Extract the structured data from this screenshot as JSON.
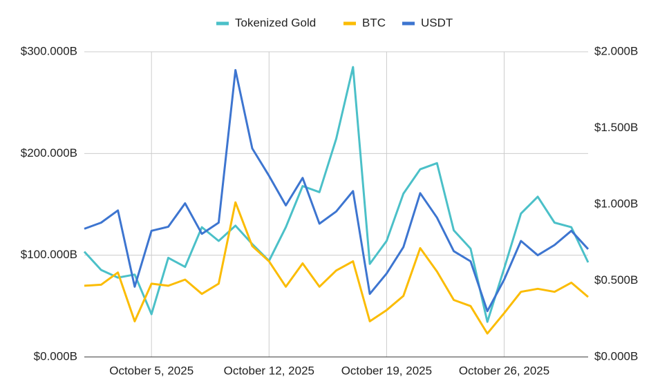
{
  "chart_data": {
    "type": "line",
    "x": [
      "2025-10-01",
      "2025-10-02",
      "2025-10-03",
      "2025-10-04",
      "2025-10-05",
      "2025-10-06",
      "2025-10-07",
      "2025-10-08",
      "2025-10-09",
      "2025-10-10",
      "2025-10-11",
      "2025-10-12",
      "2025-10-13",
      "2025-10-14",
      "2025-10-15",
      "2025-10-16",
      "2025-10-17",
      "2025-10-18",
      "2025-10-19",
      "2025-10-20",
      "2025-10-21",
      "2025-10-22",
      "2025-10-23",
      "2025-10-24",
      "2025-10-25",
      "2025-10-26",
      "2025-10-27",
      "2025-10-28",
      "2025-10-29",
      "2025-10-30",
      "2025-10-31"
    ],
    "xlim": [
      "2025-10-01",
      "2025-10-31"
    ],
    "xticks": [
      {
        "value": "2025-10-05",
        "label": "October 5, 2025"
      },
      {
        "value": "2025-10-12",
        "label": "October 12, 2025"
      },
      {
        "value": "2025-10-19",
        "label": "October 19, 2025"
      },
      {
        "value": "2025-10-26",
        "label": "October 26, 2025"
      }
    ],
    "ylim": [
      0,
      300
    ],
    "yticks": [
      {
        "value": 0,
        "label": "$0.000B"
      },
      {
        "value": 100,
        "label": "$100.000B"
      },
      {
        "value": 200,
        "label": "$200.000B"
      },
      {
        "value": 300,
        "label": "$300.000B"
      }
    ],
    "y2lim": [
      0,
      2
    ],
    "y2ticks": [
      {
        "value": 0,
        "label": "$0.000B"
      },
      {
        "value": 0.5,
        "label": "$0.500B"
      },
      {
        "value": 1,
        "label": "$1.000B"
      },
      {
        "value": 1.5,
        "label": "$1.500B"
      },
      {
        "value": 2,
        "label": "$2.000B"
      }
    ],
    "grid": true,
    "legend": "top",
    "series": [
      {
        "name": "Tokenized Gold",
        "color": "#4bc0c8",
        "axis": "y2",
        "values": [
          0.69,
          0.57,
          0.52,
          0.54,
          0.28,
          0.65,
          0.59,
          0.85,
          0.76,
          0.86,
          0.74,
          0.63,
          0.85,
          1.12,
          1.08,
          1.43,
          1.9,
          0.61,
          0.76,
          1.07,
          1.23,
          1.27,
          0.83,
          0.71,
          0.23,
          0.58,
          0.94,
          1.05,
          0.88,
          0.85,
          0.62
        ]
      },
      {
        "name": "BTC",
        "color": "#fbbc04",
        "values": [
          70,
          71,
          83,
          35,
          72,
          70,
          76,
          62,
          72,
          152,
          109,
          94,
          69,
          92,
          69,
          85,
          94,
          35,
          46,
          60,
          107,
          84,
          56,
          50,
          23,
          43,
          64,
          67,
          64,
          73,
          59
        ]
      },
      {
        "name": "USDT",
        "color": "#3d75d0",
        "values": [
          126,
          132,
          144,
          69,
          124,
          128,
          151,
          121,
          132,
          282,
          205,
          178,
          149,
          176,
          131,
          143,
          163,
          62,
          82,
          108,
          161,
          137,
          104,
          94,
          45,
          76,
          114,
          100,
          110,
          124,
          106
        ]
      }
    ]
  }
}
